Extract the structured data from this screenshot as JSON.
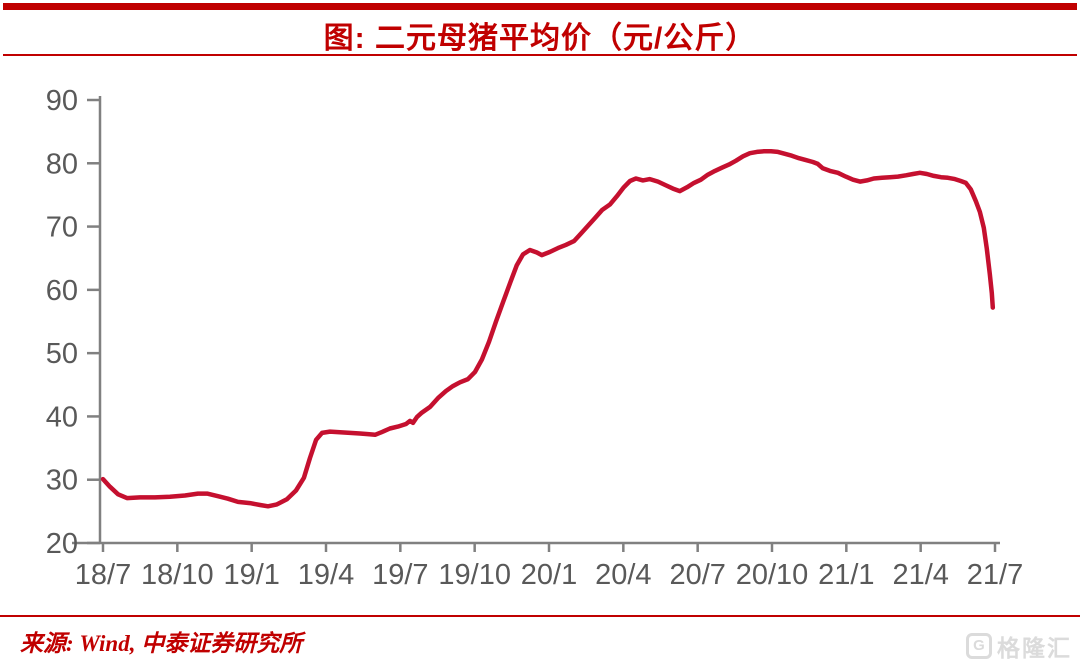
{
  "header": {
    "title": "图: 二元母猪平均价（元/公斤）"
  },
  "footer": {
    "source": "来源: Wind, 中泰证券研究所",
    "watermark_text": "格隆汇",
    "watermark_icon_glyph": "G"
  },
  "colors": {
    "accent_red": "#C00000",
    "series_red": "#C5102F",
    "axis_gray": "#808080",
    "tick_label_gray": "#595959",
    "watermark_gray": "#DBDBDB"
  },
  "chart_data": {
    "type": "line",
    "title": "二元母猪平均价（元/公斤）",
    "xlabel": "",
    "ylabel": "",
    "x_unit": "months since 2018-07 (0 = 18/7, 36 = 21/7)",
    "xlim": [
      0,
      36
    ],
    "ylim": [
      20,
      90
    ],
    "y_ticks": [
      20,
      30,
      40,
      50,
      60,
      70,
      80,
      90
    ],
    "x_tick_positions": [
      0,
      3,
      6,
      9,
      12,
      15,
      18,
      21,
      24,
      27,
      30,
      33,
      36
    ],
    "x_tick_labels": [
      "18/7",
      "18/10",
      "19/1",
      "19/4",
      "19/7",
      "19/10",
      "20/1",
      "20/4",
      "20/7",
      "20/10",
      "21/1",
      "21/4",
      "21/7"
    ],
    "grid": false,
    "legend_position": "none",
    "series": [
      {
        "name": "二元母猪平均价",
        "color": "#C5102F",
        "points": [
          [
            0.0,
            30.1
          ],
          [
            0.28,
            28.9
          ],
          [
            0.61,
            27.7
          ],
          [
            0.97,
            27.1
          ],
          [
            1.49,
            27.2
          ],
          [
            2.1,
            27.2
          ],
          [
            2.7,
            27.3
          ],
          [
            3.31,
            27.5
          ],
          [
            3.83,
            27.8
          ],
          [
            4.2,
            27.8
          ],
          [
            4.64,
            27.4
          ],
          [
            5.04,
            27.0
          ],
          [
            5.45,
            26.5
          ],
          [
            5.93,
            26.3
          ],
          [
            6.34,
            26.0
          ],
          [
            6.66,
            25.8
          ],
          [
            7.02,
            26.1
          ],
          [
            7.42,
            26.9
          ],
          [
            7.79,
            28.3
          ],
          [
            8.11,
            30.3
          ],
          [
            8.35,
            33.4
          ],
          [
            8.6,
            36.3
          ],
          [
            8.84,
            37.4
          ],
          [
            9.16,
            37.6
          ],
          [
            9.56,
            37.5
          ],
          [
            9.97,
            37.4
          ],
          [
            10.37,
            37.3
          ],
          [
            10.69,
            37.2
          ],
          [
            10.98,
            37.1
          ],
          [
            11.3,
            37.6
          ],
          [
            11.58,
            38.1
          ],
          [
            11.9,
            38.4
          ],
          [
            12.23,
            38.8
          ],
          [
            12.39,
            39.3
          ],
          [
            12.51,
            39.0
          ],
          [
            12.67,
            39.9
          ],
          [
            12.87,
            40.6
          ],
          [
            13.2,
            41.5
          ],
          [
            13.52,
            42.9
          ],
          [
            13.84,
            44.0
          ],
          [
            14.12,
            44.8
          ],
          [
            14.41,
            45.4
          ],
          [
            14.73,
            45.9
          ],
          [
            15.01,
            47.0
          ],
          [
            15.29,
            49.0
          ],
          [
            15.58,
            51.8
          ],
          [
            15.86,
            55.0
          ],
          [
            16.14,
            58.0
          ],
          [
            16.42,
            61.0
          ],
          [
            16.7,
            63.9
          ],
          [
            16.95,
            65.6
          ],
          [
            17.23,
            66.3
          ],
          [
            17.51,
            65.9
          ],
          [
            17.71,
            65.5
          ],
          [
            18.04,
            66.0
          ],
          [
            18.36,
            66.6
          ],
          [
            18.68,
            67.1
          ],
          [
            19.01,
            67.7
          ],
          [
            19.29,
            68.9
          ],
          [
            19.57,
            70.1
          ],
          [
            19.85,
            71.3
          ],
          [
            20.14,
            72.6
          ],
          [
            20.46,
            73.5
          ],
          [
            20.74,
            74.8
          ],
          [
            21.02,
            76.2
          ],
          [
            21.27,
            77.2
          ],
          [
            21.51,
            77.6
          ],
          [
            21.79,
            77.3
          ],
          [
            22.07,
            77.5
          ],
          [
            22.4,
            77.1
          ],
          [
            22.72,
            76.5
          ],
          [
            23.0,
            76.0
          ],
          [
            23.28,
            75.6
          ],
          [
            23.57,
            76.2
          ],
          [
            23.85,
            76.9
          ],
          [
            24.13,
            77.4
          ],
          [
            24.41,
            78.2
          ],
          [
            24.7,
            78.8
          ],
          [
            24.98,
            79.3
          ],
          [
            25.26,
            79.8
          ],
          [
            25.54,
            80.4
          ],
          [
            25.83,
            81.1
          ],
          [
            26.11,
            81.6
          ],
          [
            26.39,
            81.8
          ],
          [
            26.67,
            81.9
          ],
          [
            26.96,
            81.9
          ],
          [
            27.24,
            81.8
          ],
          [
            27.52,
            81.5
          ],
          [
            27.8,
            81.2
          ],
          [
            28.09,
            80.8
          ],
          [
            28.37,
            80.5
          ],
          [
            28.65,
            80.2
          ],
          [
            28.85,
            79.9
          ],
          [
            29.05,
            79.2
          ],
          [
            29.34,
            78.8
          ],
          [
            29.66,
            78.5
          ],
          [
            29.98,
            77.9
          ],
          [
            30.27,
            77.4
          ],
          [
            30.55,
            77.1
          ],
          [
            30.83,
            77.3
          ],
          [
            31.11,
            77.6
          ],
          [
            31.44,
            77.7
          ],
          [
            31.76,
            77.8
          ],
          [
            32.08,
            77.9
          ],
          [
            32.41,
            78.1
          ],
          [
            32.69,
            78.3
          ],
          [
            32.97,
            78.5
          ],
          [
            33.25,
            78.3
          ],
          [
            33.53,
            78.0
          ],
          [
            33.82,
            77.8
          ],
          [
            34.1,
            77.7
          ],
          [
            34.38,
            77.5
          ],
          [
            34.62,
            77.2
          ],
          [
            34.82,
            76.9
          ],
          [
            35.02,
            75.9
          ],
          [
            35.23,
            74.0
          ],
          [
            35.39,
            72.3
          ],
          [
            35.55,
            69.8
          ],
          [
            35.67,
            66.5
          ],
          [
            35.79,
            62.5
          ],
          [
            35.87,
            59.5
          ],
          [
            35.91,
            57.2
          ]
        ]
      }
    ]
  }
}
